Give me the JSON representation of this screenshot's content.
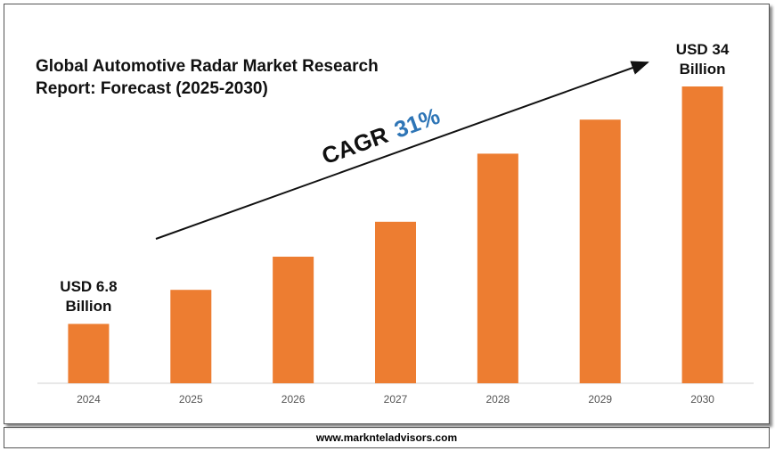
{
  "chart_data": {
    "type": "bar",
    "title": "Global Automotive Radar Market Research Report: Forecast (2025-2030)",
    "categories": [
      "2024",
      "2025",
      "2026",
      "2027",
      "2028",
      "2029",
      "2030"
    ],
    "values": [
      6.8,
      10.7,
      14.5,
      18.5,
      26.3,
      30.2,
      34
    ],
    "value_labels": [
      "USD 6.8 Billion",
      null,
      null,
      null,
      null,
      null,
      "USD 34 Billion"
    ],
    "color": "#ed7d31",
    "annotation": {
      "label": "CAGR",
      "value": "31%"
    },
    "source": "www.marknteladvisors.com"
  }
}
